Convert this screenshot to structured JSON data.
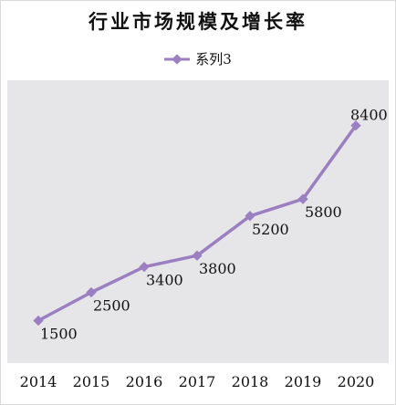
{
  "chart_data": {
    "type": "line",
    "title": "行业市场规模及增长率",
    "categories": [
      "2014",
      "2015",
      "2016",
      "2017",
      "2018",
      "2019",
      "2020"
    ],
    "series": [
      {
        "name": "系列3",
        "values": [
          1500,
          2500,
          3400,
          3800,
          5200,
          5800,
          8400
        ]
      }
    ],
    "ylim": [
      0,
      10000
    ],
    "grid": false,
    "legend": "top",
    "colors": {
      "series": "#9b7fc0",
      "plot_bg": "#e6e6e9",
      "text": "#111111"
    }
  }
}
